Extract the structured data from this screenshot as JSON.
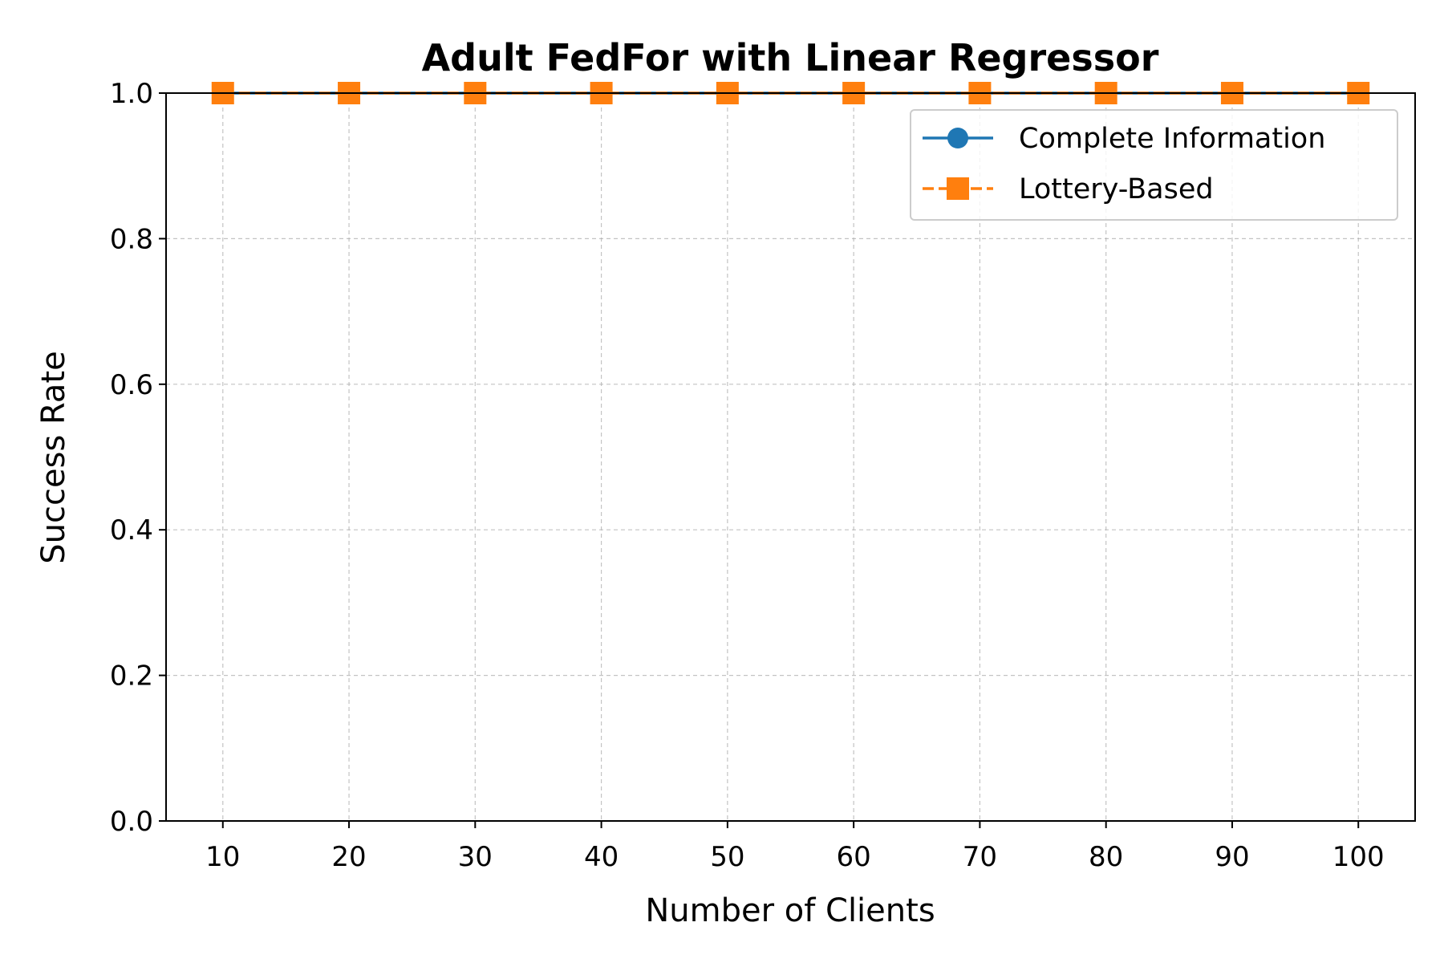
{
  "chart_data": {
    "type": "line",
    "title": "Adult FedFor with Linear Regressor",
    "xlabel": "Number of Clients",
    "ylabel": "Success Rate",
    "x": [
      10,
      20,
      30,
      40,
      50,
      60,
      70,
      80,
      90,
      100
    ],
    "x_ticks": [
      "10",
      "20",
      "30",
      "40",
      "50",
      "60",
      "70",
      "80",
      "90",
      "100"
    ],
    "xlim": [
      5.5,
      104.5
    ],
    "ylim": [
      0.0,
      1.0
    ],
    "y_ticks": [
      "0.0",
      "0.2",
      "0.4",
      "0.6",
      "0.8",
      "1.0"
    ],
    "grid": true,
    "legend_position": "top-right",
    "series": [
      {
        "name": "Complete Information",
        "color": "#1f77b4",
        "marker": "circle",
        "line_style": "solid",
        "values": [
          1.0,
          1.0,
          1.0,
          1.0,
          1.0,
          1.0,
          1.0,
          1.0,
          1.0,
          1.0
        ]
      },
      {
        "name": "Lottery-Based",
        "color": "#ff7f0e",
        "marker": "square",
        "line_style": "dashed",
        "values": [
          1.0,
          1.0,
          1.0,
          1.0,
          1.0,
          1.0,
          1.0,
          1.0,
          1.0,
          1.0
        ]
      }
    ]
  }
}
